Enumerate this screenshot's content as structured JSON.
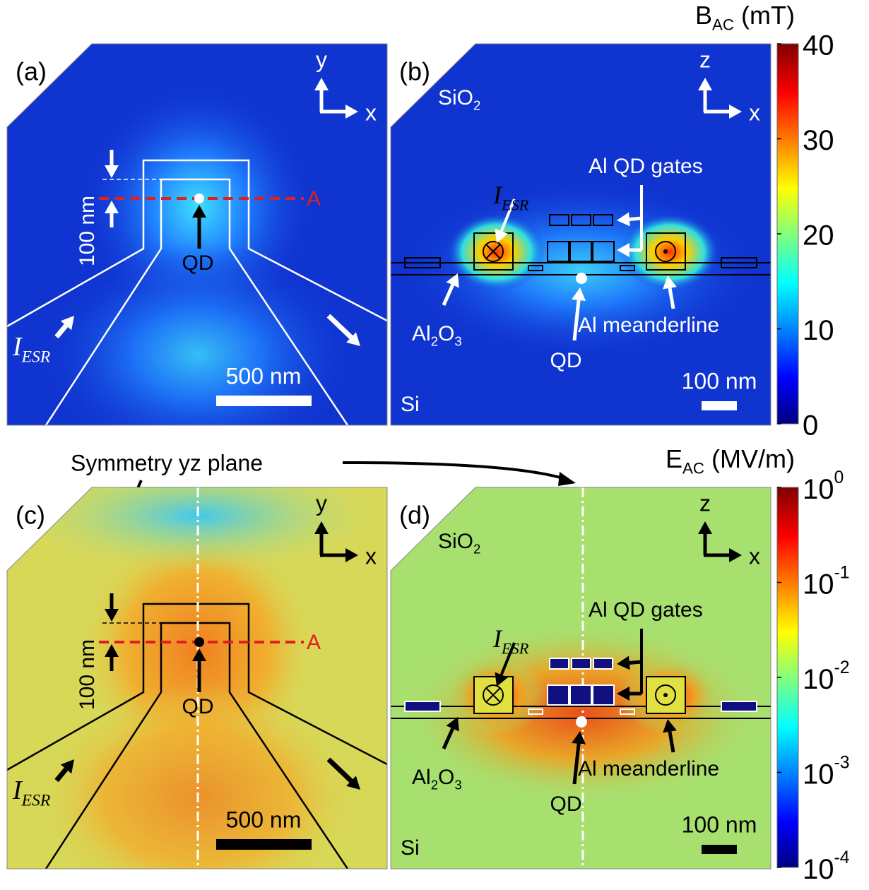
{
  "panels": [
    {
      "label": "(a)",
      "axis_up": "y",
      "axis_right": "x",
      "scale": "500 nm",
      "texts": [
        [
          "100 nm"
        ],
        [
          "A"
        ],
        [
          "QD"
        ],
        [
          "I",
          "ESR"
        ]
      ]
    },
    {
      "label": "(b)",
      "axis_up": "z",
      "axis_right": "x",
      "scale": "100 nm",
      "texts": [
        [
          "SiO",
          "2"
        ],
        [
          "Si"
        ],
        [
          "Al QD gates"
        ],
        [
          "I",
          "ESR"
        ],
        [
          "Al",
          "2",
          "O",
          "3"
        ],
        [
          "QD"
        ],
        [
          "Al meanderline"
        ]
      ]
    },
    {
      "label": "(c)",
      "axis_up": "y",
      "axis_right": "x",
      "scale": "500 nm",
      "texts": [
        [
          "100 nm"
        ],
        [
          "A"
        ],
        [
          "QD"
        ],
        [
          "I",
          "ESR"
        ]
      ]
    },
    {
      "label": "(d)",
      "axis_up": "z",
      "axis_right": "x",
      "scale": "100 nm",
      "texts": [
        [
          "SiO",
          "2"
        ],
        [
          "Si"
        ],
        [
          "Al QD gates"
        ],
        [
          "I",
          "ESR"
        ],
        [
          "Al",
          "2",
          "O",
          "3"
        ],
        [
          "QD"
        ],
        [
          "Al meanderline"
        ]
      ]
    }
  ],
  "colorbars": [
    {
      "title": [
        "B",
        "AC",
        " (mT)"
      ],
      "scale": "linear",
      "range": [
        0,
        40
      ],
      "ticks": [
        0,
        10,
        20,
        30,
        40
      ]
    },
    {
      "title": [
        "E",
        "AC",
        " (MV/m)"
      ],
      "scale": "log",
      "range": [
        0.0001,
        1
      ],
      "ticks": [
        {
          "value": 1,
          "label": [
            "10",
            "0"
          ]
        },
        {
          "value": 0.1,
          "label": [
            "10",
            "-1"
          ]
        },
        {
          "value": 0.01,
          "label": [
            "10",
            "-2"
          ]
        },
        {
          "value": 0.001,
          "label": [
            "10",
            "-3"
          ]
        },
        {
          "value": 0.0001,
          "label": [
            "10",
            "-4"
          ]
        }
      ]
    }
  ],
  "note": "Symmetry yz plane"
}
